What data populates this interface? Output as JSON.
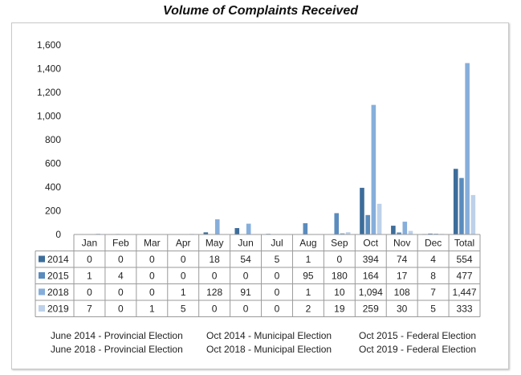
{
  "title": "Volume of Complaints Received",
  "chart_data": {
    "type": "bar",
    "title": "Volume of Complaints Received",
    "categories": [
      "Jan",
      "Feb",
      "Mar",
      "Apr",
      "May",
      "Jun",
      "Jul",
      "Aug",
      "Sep",
      "Oct",
      "Nov",
      "Dec",
      "Total"
    ],
    "ylim": [
      0,
      1600
    ],
    "yticks": [
      "0",
      "200",
      "400",
      "600",
      "800",
      "1,000",
      "1,200",
      "1,400",
      "1,600"
    ],
    "ytick_values": [
      0,
      200,
      400,
      600,
      800,
      1000,
      1200,
      1400,
      1600
    ],
    "grid": false,
    "legend": "table-below",
    "series": [
      {
        "name": "2014",
        "color": "#3d6d9a",
        "values": [
          0,
          0,
          0,
          0,
          18,
          54,
          5,
          1,
          0,
          394,
          74,
          4,
          554
        ],
        "labels": [
          "0",
          "0",
          "0",
          "0",
          "18",
          "54",
          "5",
          "1",
          "0",
          "394",
          "74",
          "4",
          "554"
        ]
      },
      {
        "name": "2015",
        "color": "#5a8bbd",
        "values": [
          1,
          4,
          0,
          0,
          0,
          0,
          0,
          95,
          180,
          164,
          17,
          8,
          477
        ],
        "labels": [
          "1",
          "4",
          "0",
          "0",
          "0",
          "0",
          "0",
          "95",
          "180",
          "164",
          "17",
          "8",
          "477"
        ]
      },
      {
        "name": "2018",
        "color": "#86aedb",
        "values": [
          0,
          0,
          0,
          1,
          128,
          91,
          0,
          1,
          10,
          1094,
          108,
          7,
          1447
        ],
        "labels": [
          "0",
          "0",
          "0",
          "1",
          "128",
          "91",
          "0",
          "1",
          "10",
          "1,094",
          "108",
          "7",
          "1,447"
        ]
      },
      {
        "name": "2019",
        "color": "#bdd1ea",
        "values": [
          7,
          0,
          1,
          5,
          0,
          0,
          0,
          2,
          19,
          259,
          30,
          5,
          333
        ],
        "labels": [
          "7",
          "0",
          "1",
          "5",
          "0",
          "0",
          "0",
          "2",
          "19",
          "259",
          "30",
          "5",
          "333"
        ]
      }
    ]
  },
  "notes": [
    "June 2014 - Provincial Election",
    "Oct 2014 - Municipal Election",
    "Oct 2015 - Federal Election",
    "June 2018 - Provincial Election",
    "Oct 2018 - Municipal Election",
    "Oct 2019 - Federal Election"
  ]
}
